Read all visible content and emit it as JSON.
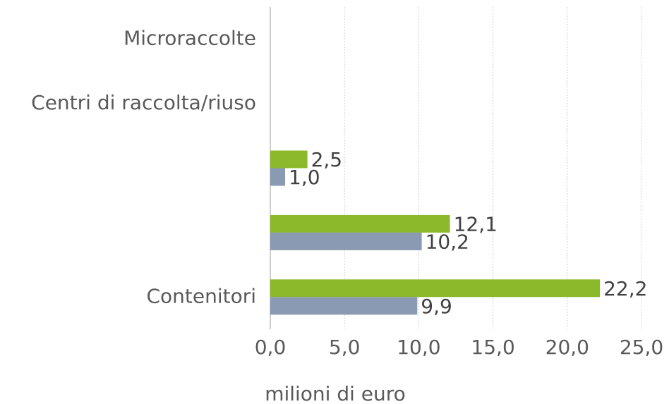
{
  "chart_data": {
    "type": "bar",
    "orientation": "horizontal",
    "categories": [
      "Microraccolte",
      "Centri di raccolta/riuso",
      null,
      null,
      "Contenitori"
    ],
    "series": [
      {
        "color": "#8cb82b",
        "values": [
          null,
          null,
          2.5,
          12.1,
          22.2
        ],
        "value_labels": [
          null,
          null,
          "2,5",
          "12,1",
          "22,2"
        ]
      },
      {
        "color": "#8a9ab2",
        "values": [
          null,
          null,
          1.0,
          10.2,
          9.9
        ],
        "value_labels": [
          null,
          null,
          "1,0",
          "10,2",
          "9,9"
        ]
      }
    ],
    "xlabel": "milioni di euro",
    "xlim": [
      0,
      25
    ],
    "xticks": [
      {
        "value": 0,
        "label": "0,0"
      },
      {
        "value": 5,
        "label": "5,0"
      },
      {
        "value": 10,
        "label": "10,0"
      },
      {
        "value": 15,
        "label": "15,0"
      },
      {
        "value": 20,
        "label": "20,0"
      },
      {
        "value": 25,
        "label": "25,0"
      }
    ],
    "grid": true
  }
}
